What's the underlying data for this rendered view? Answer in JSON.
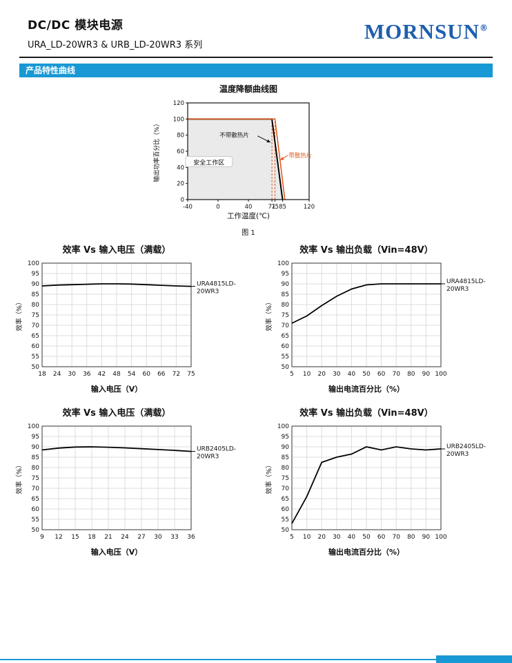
{
  "header": {
    "title": "DC/DC 模块电源",
    "subtitle": "URA_LD-20WR3 & URB_LD-20WR3 系列",
    "logo": "MORNSUN",
    "registered": "®"
  },
  "section_bar": "产品特性曲线",
  "figure_caption": "图 1",
  "colors": {
    "section_blue": "#1898d4",
    "logo_blue": "#1f5fae",
    "accent_orange": "#e05a1e",
    "grid_gray": "#dddddd",
    "safe_area_gray": "#eaeaea"
  },
  "chart_data": [
    {
      "id": "derating-curve",
      "type": "line",
      "title": "温度降额曲线图",
      "xlabel": "工作温度(℃)",
      "ylabel": "输出功率百分比（%）",
      "x_range": [
        -40,
        120
      ],
      "y_range": [
        0,
        120
      ],
      "x_ticks": [
        -40,
        0,
        40,
        71,
        75,
        85,
        120
      ],
      "y_ticks": [
        0,
        20,
        40,
        60,
        80,
        100,
        120
      ],
      "dashed_x": [
        71,
        75
      ],
      "series": [
        {
          "name": "不带散热片",
          "color": "#000000",
          "points": [
            [
              -40,
              100
            ],
            [
              71,
              100
            ],
            [
              85,
              0
            ]
          ]
        },
        {
          "name": "带散热片",
          "color": "#e05a1e",
          "points": [
            [
              -40,
              100
            ],
            [
              75,
              100
            ],
            [
              88,
              0
            ]
          ]
        }
      ],
      "annotations": {
        "safe_area": "安全工作区",
        "no_heatsink": "不带散热片",
        "with_heatsink": "带散热片"
      }
    },
    {
      "id": "ura4815-eff-vs-vin",
      "type": "line",
      "title": "效率 Vs 输入电压（满载）",
      "xlabel": "输入电压（V）",
      "ylabel": "效率（%）",
      "model": [
        "URA4815LD-",
        "20WR3"
      ],
      "x_ticks": [
        "18",
        "24",
        "30",
        "36",
        "42",
        "48",
        "54",
        "60",
        "66",
        "72",
        "75"
      ],
      "y_ticks": [
        100,
        95,
        90,
        85,
        80,
        75,
        70,
        65,
        60,
        55,
        50
      ],
      "ylim": [
        50,
        100
      ],
      "values": [
        89.0,
        89.4,
        89.6,
        89.8,
        90.0,
        90.0,
        89.9,
        89.6,
        89.3,
        89.0,
        88.8
      ]
    },
    {
      "id": "ura4815-eff-vs-load",
      "type": "line",
      "title": "效率 Vs 输出负载（Vin=48V）",
      "xlabel": "输出电流百分比（%）",
      "ylabel": "效率（%）",
      "model": [
        "URA4815LD-",
        "20WR3"
      ],
      "x_ticks": [
        "5",
        "10",
        "20",
        "30",
        "40",
        "50",
        "60",
        "70",
        "80",
        "90",
        "100"
      ],
      "y_ticks": [
        100,
        95,
        90,
        85,
        80,
        75,
        70,
        65,
        60,
        55,
        50
      ],
      "ylim": [
        50,
        100
      ],
      "values": [
        71,
        74.5,
        79.5,
        84,
        87.5,
        89.5,
        90,
        90,
        90,
        90,
        90
      ]
    },
    {
      "id": "urb2405-eff-vs-vin",
      "type": "line",
      "title": "效率 Vs 输入电压（满载）",
      "xlabel": "输入电压（V）",
      "ylabel": "效率（%）",
      "model": [
        "URB2405LD-",
        "20WR3"
      ],
      "x_ticks": [
        "9",
        "12",
        "15",
        "18",
        "21",
        "24",
        "27",
        "30",
        "33",
        "36"
      ],
      "y_ticks": [
        100,
        95,
        90,
        85,
        80,
        75,
        70,
        65,
        60,
        55,
        50
      ],
      "ylim": [
        50,
        100
      ],
      "values": [
        88.5,
        89.4,
        89.9,
        90.0,
        89.8,
        89.5,
        89.1,
        88.7,
        88.3,
        87.8
      ]
    },
    {
      "id": "urb2405-eff-vs-load",
      "type": "line",
      "title": "效率 Vs 输出负载（Vin=48V）",
      "xlabel": "输出电流百分比（%）",
      "ylabel": "效率（%）",
      "model": [
        "URB2405LD-",
        "20WR3"
      ],
      "x_ticks": [
        "5",
        "10",
        "20",
        "30",
        "40",
        "50",
        "60",
        "70",
        "80",
        "90",
        "100"
      ],
      "y_ticks": [
        100,
        95,
        90,
        85,
        80,
        75,
        70,
        65,
        60,
        55,
        50
      ],
      "ylim": [
        50,
        100
      ],
      "values": [
        53,
        66,
        82.5,
        85,
        86.5,
        90,
        88.5,
        90,
        89,
        88.5,
        89
      ]
    }
  ]
}
